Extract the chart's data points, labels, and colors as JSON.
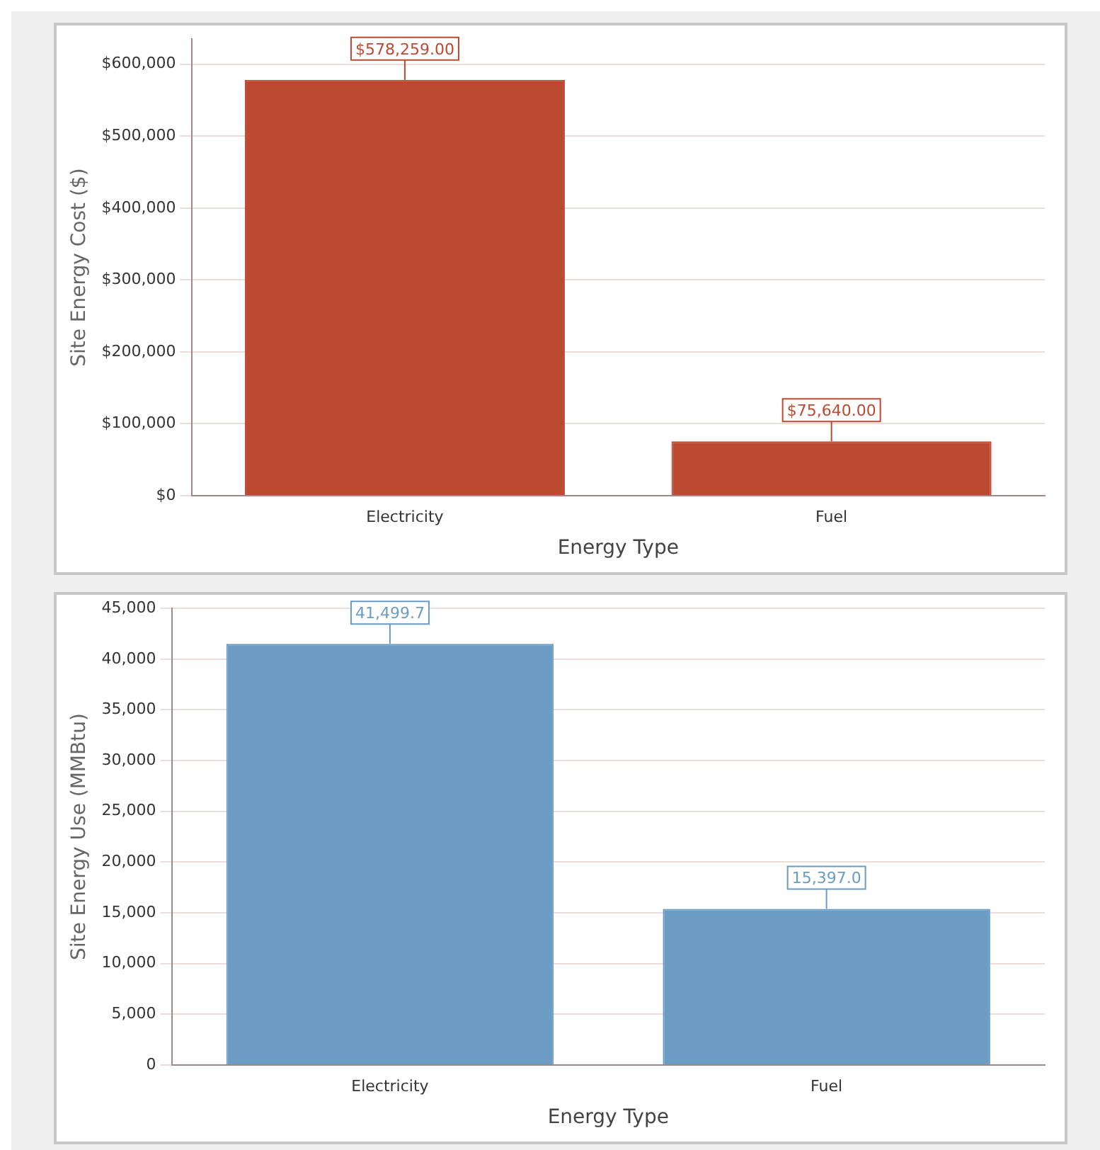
{
  "chart_data": [
    {
      "type": "bar",
      "xlabel": "Energy Type",
      "ylabel": "Site Energy Cost ($)",
      "categories": [
        "Electricity",
        "Fuel"
      ],
      "values": [
        578259,
        75640
      ],
      "value_labels": [
        "$578,259.00",
        "$75,640.00"
      ],
      "color": "#bc4a32",
      "ylim": [
        0,
        635000
      ],
      "yticks": [
        {
          "value": 0,
          "label": "$0"
        },
        {
          "value": 100000,
          "label": "$100,000"
        },
        {
          "value": 200000,
          "label": "$200,000"
        },
        {
          "value": 300000,
          "label": "$300,000"
        },
        {
          "value": 400000,
          "label": "$400,000"
        },
        {
          "value": 500000,
          "label": "$500,000"
        },
        {
          "value": 600000,
          "label": "$600,000"
        }
      ],
      "grid": "y",
      "legend": false
    },
    {
      "type": "bar",
      "xlabel": "Energy Type",
      "ylabel": "Site Energy Use (MMBtu)",
      "categories": [
        "Electricity",
        "Fuel"
      ],
      "values": [
        41499.7,
        15397.0
      ],
      "value_labels": [
        "41,499.7",
        "15,397.0"
      ],
      "color": "#6a9cc4",
      "ylim": [
        0,
        45000
      ],
      "yticks": [
        {
          "value": 0,
          "label": "0"
        },
        {
          "value": 5000,
          "label": "5,000"
        },
        {
          "value": 10000,
          "label": "10,000"
        },
        {
          "value": 15000,
          "label": "15,000"
        },
        {
          "value": 20000,
          "label": "20,000"
        },
        {
          "value": 25000,
          "label": "25,000"
        },
        {
          "value": 30000,
          "label": "30,000"
        },
        {
          "value": 35000,
          "label": "35,000"
        },
        {
          "value": 40000,
          "label": "40,000"
        },
        {
          "value": 45000,
          "label": "45,000"
        }
      ],
      "grid": "y",
      "legend": false
    }
  ]
}
